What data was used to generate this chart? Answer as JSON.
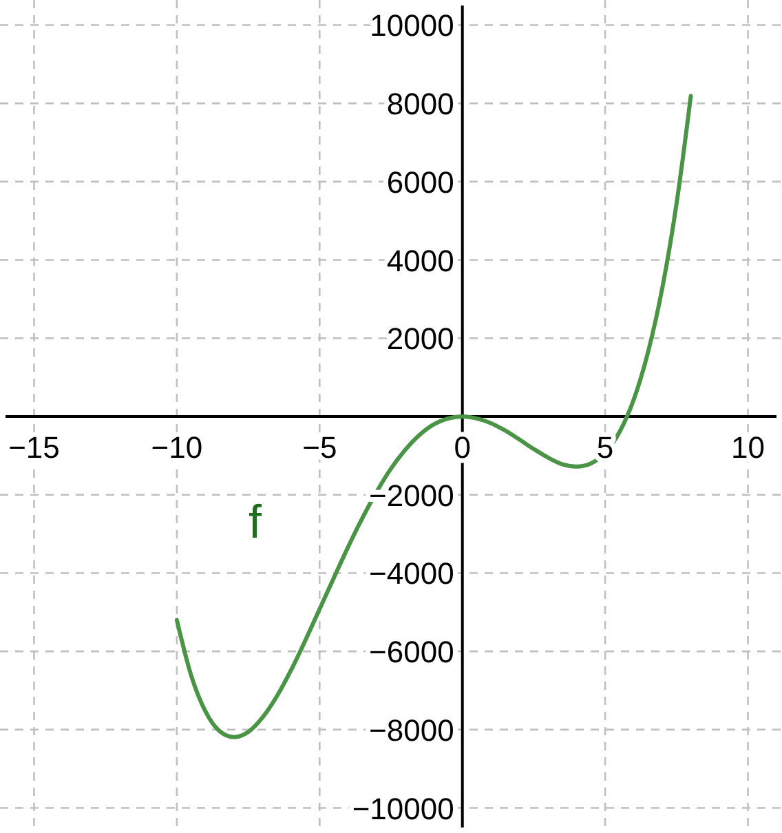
{
  "chart_data": {
    "type": "line",
    "x": [
      -10,
      -9.5,
      -9,
      -8.5,
      -8,
      -7.5,
      -7,
      -6.5,
      -6,
      -5.5,
      -5,
      -4.5,
      -4,
      -3.5,
      -3,
      -2.5,
      -2,
      -1.5,
      -1,
      -0.5,
      0,
      0.5,
      1,
      1.5,
      2,
      2.5,
      3,
      3.5,
      4,
      4.5,
      5,
      5.5,
      6,
      6.5,
      7,
      7.5,
      8
    ],
    "series": [
      {
        "name": "f",
        "color": "#4a9446",
        "values": [
          -5200,
          -6610,
          -7530,
          -8040,
          -8190,
          -8060,
          -7690,
          -7150,
          -6480,
          -5720,
          -4920,
          -4120,
          -3330,
          -2590,
          -1920,
          -1330,
          -850,
          -470,
          -200,
          -50,
          0,
          -50,
          -170,
          -360,
          -590,
          -830,
          -1050,
          -1220,
          -1280,
          -1200,
          -920,
          -400,
          430,
          1640,
          3280,
          5440,
          8190
        ]
      }
    ],
    "xlim": [
      -16,
      11
    ],
    "ylim": [
      -10500,
      10500
    ],
    "xticks": [
      {
        "value": -15,
        "label": "−15"
      },
      {
        "value": -10,
        "label": "−10"
      },
      {
        "value": -5,
        "label": "−5"
      },
      0,
      5,
      10
    ],
    "yticks": [
      {
        "value": -10000,
        "label": "−10000"
      },
      {
        "value": -8000,
        "label": "−8000"
      },
      {
        "value": -6000,
        "label": "−6000"
      },
      {
        "value": -4000,
        "label": "−4000"
      },
      {
        "value": -2000,
        "label": "−2000"
      },
      {
        "value": 0,
        "label": null
      },
      2000,
      4000,
      6000,
      8000,
      10000
    ],
    "grid": true,
    "marker": "none",
    "line_style": "solid"
  }
}
